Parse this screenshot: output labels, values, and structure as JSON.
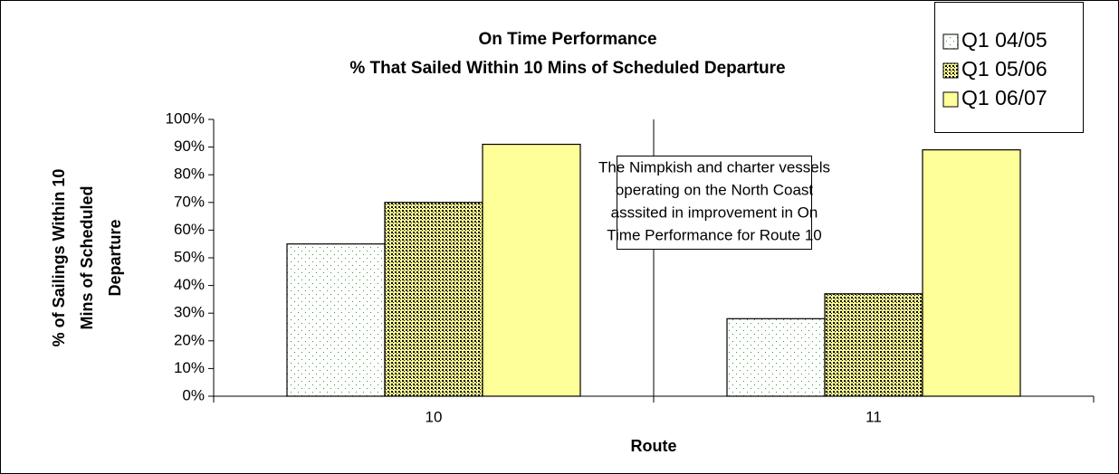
{
  "chart_data": {
    "type": "bar",
    "title": [
      "On Time Performance",
      "% That Sailed Within 10 Mins of Scheduled Departure"
    ],
    "x_label": "Route",
    "y_label": [
      "% of Sailings Within 10",
      "Mins of Scheduled",
      "Departure"
    ],
    "categories": [
      "10",
      "11"
    ],
    "series": [
      {
        "name": "Q1 04/05",
        "color": "#ffffff",
        "pattern": "sparse-dots",
        "values": [
          55,
          28
        ]
      },
      {
        "name": "Q1 05/06",
        "color": "#ffff99",
        "pattern": "dense-dots",
        "values": [
          70,
          37
        ]
      },
      {
        "name": "Q1 06/07",
        "color": "#ffff99",
        "pattern": "solid",
        "values": [
          91,
          89
        ]
      }
    ],
    "ylim": [
      0,
      100
    ],
    "yticks": [
      {
        "value": 0,
        "label": "0%"
      },
      {
        "value": 10,
        "label": "10%"
      },
      {
        "value": 20,
        "label": "20%"
      },
      {
        "value": 30,
        "label": "30%"
      },
      {
        "value": 40,
        "label": "40%"
      },
      {
        "value": 50,
        "label": "50%"
      },
      {
        "value": 60,
        "label": "60%"
      },
      {
        "value": 70,
        "label": "70%"
      },
      {
        "value": 80,
        "label": "80%"
      },
      {
        "value": 90,
        "label": "90%"
      },
      {
        "value": 100,
        "label": "100%"
      }
    ],
    "legend": "top-right",
    "annotation": [
      "The Nimpkish and charter vessels",
      "operating on the North Coast",
      "asssited in improvement in On",
      "Time Performance for Route 10"
    ]
  }
}
